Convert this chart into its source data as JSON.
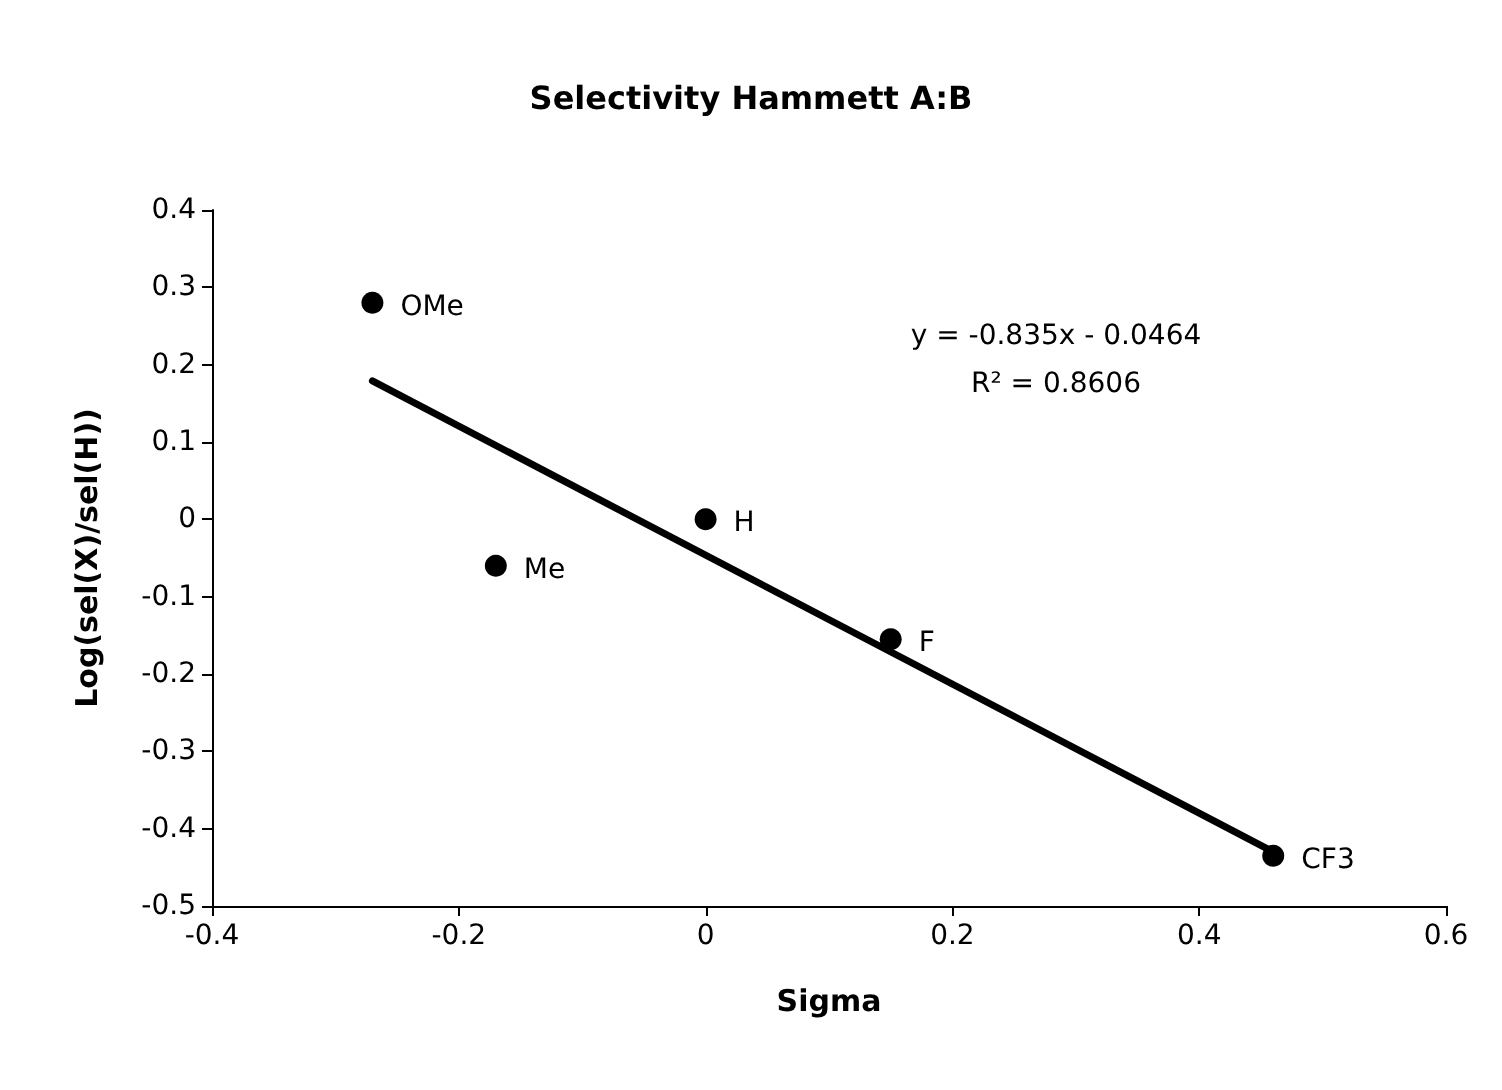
{
  "chart_data": {
    "type": "scatter",
    "title": "Selectivity Hammett A:B",
    "xlabel": "Sigma",
    "ylabel": "Log(sel(X)/sel(H))",
    "x": [
      -0.27,
      -0.17,
      0,
      0.15,
      0.46
    ],
    "series": [
      {
        "color": "#000000",
        "values": [
          0.28,
          -0.06,
          0,
          -0.155,
          -0.435
        ],
        "marker": "circle"
      },
      {
        "type": "line",
        "color": "#000000",
        "x": [
          -0.27,
          0.46
        ],
        "values": [
          0.179,
          -0.43
        ],
        "marker": "none",
        "line_style": "solid"
      }
    ],
    "xlim": [
      -0.4,
      0.6
    ],
    "xticks": [
      -0.4,
      -0.2,
      0,
      0.2,
      0.4,
      0.6
    ],
    "ylim": [
      -0.5,
      0.4
    ],
    "yticks": [
      -0.5,
      -0.4,
      -0.3,
      -0.2,
      -0.1,
      0,
      0.1,
      0.2,
      0.3,
      0.4
    ],
    "grid": false,
    "annotations": [
      {
        "text": "OMe",
        "x": -0.27,
        "y": 0.28
      },
      {
        "text": "Me",
        "x": -0.17,
        "y": -0.06
      },
      {
        "text": "H",
        "x": 0,
        "y": 0
      },
      {
        "text": "F",
        "x": 0.15,
        "y": -0.155
      },
      {
        "text": "CF3",
        "x": 0.46,
        "y": -0.435
      },
      "y = -0.835x - 0.0464",
      "R² = 0.8606"
    ]
  }
}
